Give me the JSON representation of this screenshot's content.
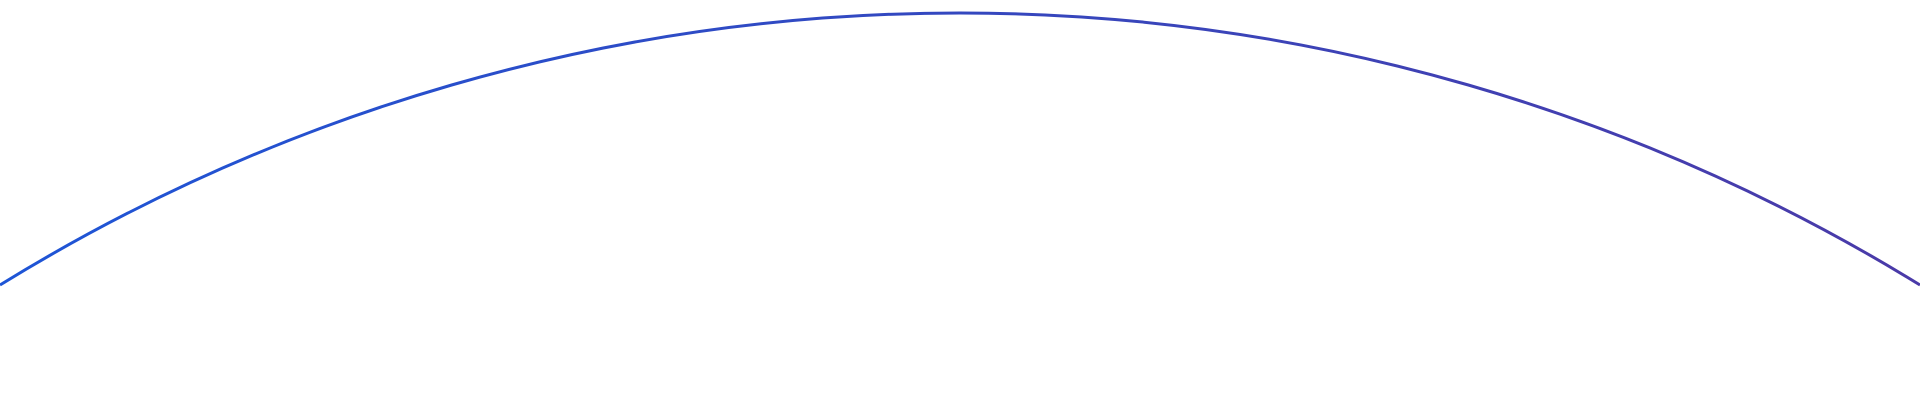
{
  "arc": {
    "color_start": "#1e55d6",
    "color_end": "#4a3aa8",
    "background": "#ffffff"
  }
}
